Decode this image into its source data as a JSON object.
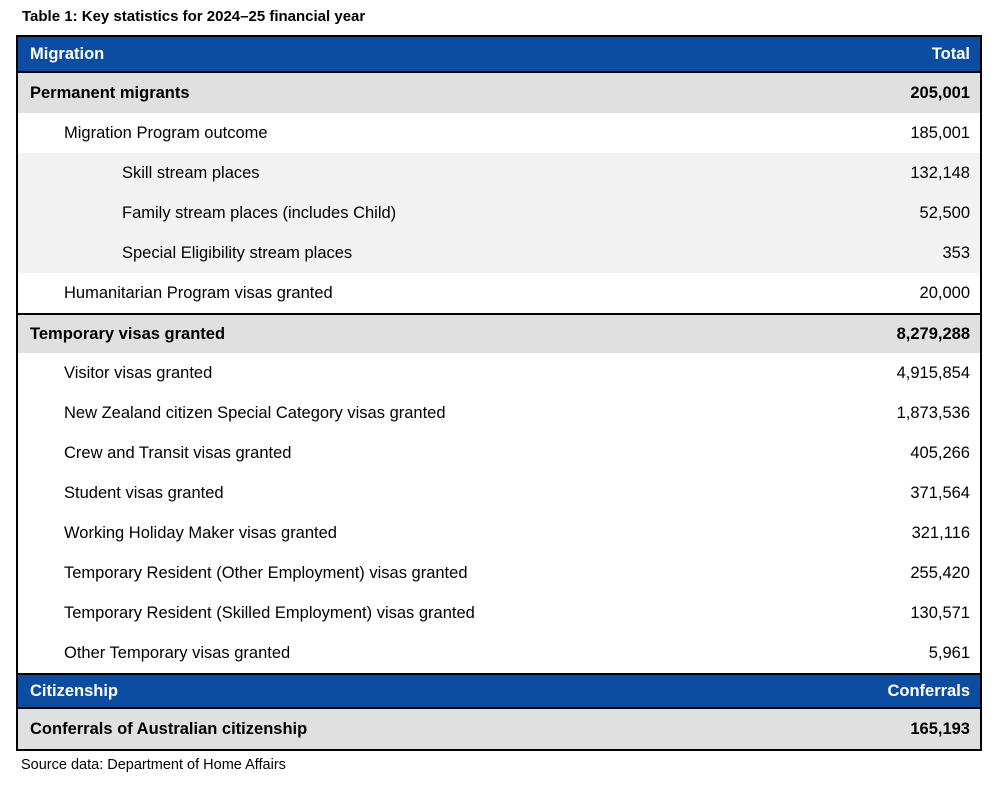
{
  "title": "Table 1: Key statistics for 2024–25 financial year",
  "source": "Source data: Department of Home Affairs",
  "colors": {
    "header_blue": "#0C4DA2",
    "section_row_gray": "#E0E0E0",
    "sub_row_gray": "#F2F2F2",
    "border_black": "#000000",
    "header_text": "#ffffff"
  },
  "table": {
    "sections": [
      {
        "header": {
          "label": "Migration",
          "value": "Total"
        },
        "rows": [
          {
            "label": "Permanent migrants",
            "value": "205,001",
            "level": 0,
            "style": "section"
          },
          {
            "label": "Migration Program outcome",
            "value": "185,001",
            "level": 1,
            "style": "normal"
          },
          {
            "label": "Skill stream places",
            "value": "132,148",
            "level": 2,
            "style": "sub"
          },
          {
            "label": "Family stream places (includes Child)",
            "value": "52,500",
            "level": 2,
            "style": "sub"
          },
          {
            "label": "Special Eligibility stream places",
            "value": "353",
            "level": 2,
            "style": "sub"
          },
          {
            "label": "Humanitarian Program visas granted",
            "value": "20,000",
            "level": 1,
            "style": "normal"
          },
          {
            "label": "Temporary visas granted",
            "value": "8,279,288",
            "level": 0,
            "style": "section"
          },
          {
            "label": "Visitor visas granted",
            "value": "4,915,854",
            "level": 1,
            "style": "normal"
          },
          {
            "label": "New Zealand citizen Special Category visas granted",
            "value": "1,873,536",
            "level": 1,
            "style": "normal"
          },
          {
            "label": "Crew and Transit visas granted",
            "value": "405,266",
            "level": 1,
            "style": "normal"
          },
          {
            "label": "Student visas granted",
            "value": "371,564",
            "level": 1,
            "style": "normal"
          },
          {
            "label": "Working Holiday Maker visas granted",
            "value": "321,116",
            "level": 1,
            "style": "normal"
          },
          {
            "label": "Temporary Resident (Other Employment) visas granted",
            "value": "255,420",
            "level": 1,
            "style": "normal"
          },
          {
            "label": "Temporary Resident (Skilled Employment) visas granted",
            "value": "130,571",
            "level": 1,
            "style": "normal"
          },
          {
            "label": "Other Temporary visas granted",
            "value": "5,961",
            "level": 1,
            "style": "normal"
          }
        ]
      },
      {
        "header": {
          "label": "Citizenship",
          "value": "Conferrals"
        },
        "rows": [
          {
            "label": "Conferrals of Australian citizenship",
            "value": "165,193",
            "level": 0,
            "style": "section"
          }
        ]
      }
    ]
  }
}
